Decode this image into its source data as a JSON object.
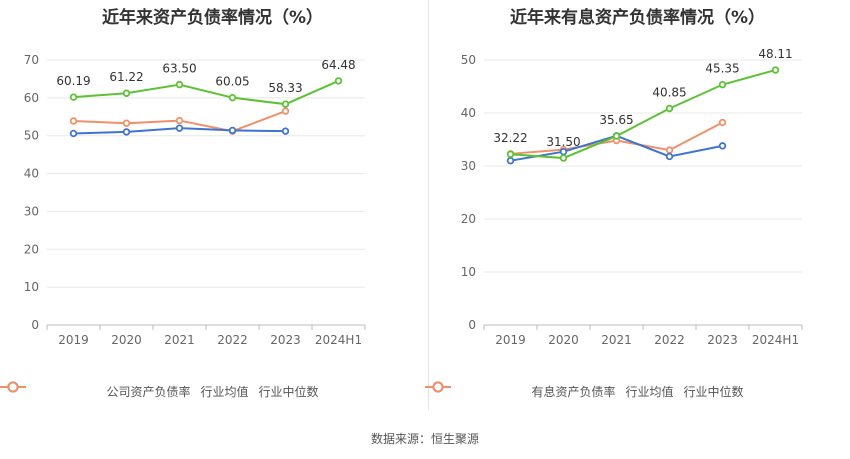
{
  "chart_data": [
    {
      "type": "line",
      "title": "近年来资产负债率情况（%）",
      "categories": [
        "2019",
        "2020",
        "2021",
        "2022",
        "2023",
        "2024H1"
      ],
      "ylim": [
        0,
        70
      ],
      "yticks": [
        0,
        10,
        20,
        30,
        40,
        50,
        60,
        70
      ],
      "grid": true,
      "legend_position": "bottom",
      "series": [
        {
          "name": "公司资产负债率",
          "color": "#5cc234",
          "values": [
            60.19,
            61.22,
            63.5,
            60.05,
            58.33,
            64.48
          ],
          "labels": [
            "60.19",
            "61.22",
            "63.50",
            "60.05",
            "58.33",
            "64.48"
          ]
        },
        {
          "name": "行业均值",
          "color": "#3e74d0",
          "values": [
            50.6,
            51.0,
            52.0,
            51.4,
            51.2,
            null
          ]
        },
        {
          "name": "行业中位数",
          "color": "#f0906a",
          "values": [
            53.9,
            53.3,
            54.0,
            51.2,
            56.5,
            null
          ]
        }
      ]
    },
    {
      "type": "line",
      "title": "近年来有息资产负债率情况（%）",
      "categories": [
        "2019",
        "2020",
        "2021",
        "2022",
        "2023",
        "2024H1"
      ],
      "ylim": [
        0,
        50
      ],
      "yticks": [
        0,
        10,
        20,
        30,
        40,
        50
      ],
      "grid": true,
      "legend_position": "bottom",
      "series": [
        {
          "name": "有息资产负债率",
          "color": "#5cc234",
          "values": [
            32.22,
            31.5,
            35.65,
            40.85,
            45.35,
            48.11
          ],
          "labels": [
            "32.22",
            "31.50",
            "35.65",
            "40.85",
            "45.35",
            "48.11"
          ]
        },
        {
          "name": "行业均值",
          "color": "#3e74d0",
          "values": [
            31.0,
            32.7,
            35.7,
            31.8,
            33.8,
            null
          ]
        },
        {
          "name": "行业中位数",
          "color": "#f0906a",
          "values": [
            32.3,
            33.1,
            34.8,
            33.0,
            38.2,
            null
          ]
        }
      ]
    }
  ],
  "footer": {
    "source": "数据来源：恒生聚源"
  }
}
